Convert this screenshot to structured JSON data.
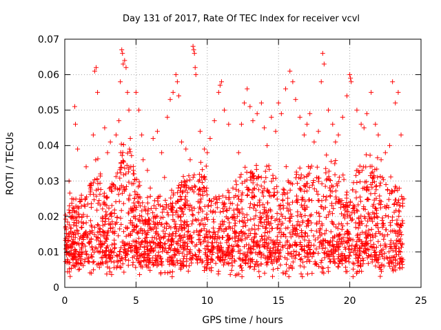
{
  "chart_data": {
    "type": "scatter",
    "title": "Day 131 of 2017, Rate Of TEC Index for receiver vcvl",
    "xlabel": "GPS time / hours",
    "ylabel": "ROTI / TECUs",
    "xlim": [
      0,
      25
    ],
    "ylim": [
      0,
      0.07
    ],
    "xticks": [
      0,
      5,
      10,
      15,
      20,
      25
    ],
    "yticks": [
      0,
      0.01,
      0.02,
      0.03,
      0.04,
      0.05,
      0.06,
      0.07
    ],
    "xtick_labels": [
      "0",
      "5",
      "10",
      "15",
      "20",
      "25"
    ],
    "ytick_labels": [
      "0",
      "0.01",
      "0.02",
      "0.03",
      "0.04",
      "0.05",
      "0.06",
      "0.07"
    ],
    "grid": true,
    "marker": "+",
    "color": "#ff0000",
    "series": [
      {
        "x": [
          0.1,
          0.3,
          0.5,
          0.7,
          0.75,
          0.9,
          1.2,
          1.5,
          1.8,
          2.0,
          2.1,
          2.2,
          2.3,
          2.5,
          2.8,
          3.0,
          3.2,
          3.4,
          3.6,
          3.8,
          3.9,
          4.0,
          4.05,
          4.1,
          4.2,
          4.3,
          4.4,
          4.5,
          4.6,
          4.8,
          5.0,
          5.2,
          5.4,
          5.5,
          5.8,
          6.0,
          6.2,
          6.5,
          6.8,
          7.0,
          7.2,
          7.4,
          7.6,
          7.8,
          7.9,
          8.0,
          8.2,
          8.5,
          8.8,
          9.0,
          9.05,
          9.1,
          9.15,
          9.2,
          9.5,
          9.8,
          10.0,
          10.2,
          10.5,
          10.8,
          10.9,
          11.0,
          11.2,
          11.5,
          11.8,
          12.0,
          12.2,
          12.4,
          12.6,
          12.8,
          13.0,
          13.2,
          13.5,
          13.8,
          14.0,
          14.2,
          14.5,
          14.8,
          15.0,
          15.2,
          15.5,
          15.8,
          16.0,
          16.2,
          16.5,
          16.8,
          17.0,
          17.2,
          17.5,
          17.8,
          18.0,
          18.1,
          18.2,
          18.5,
          18.8,
          19.0,
          19.2,
          19.5,
          19.8,
          20.0,
          20.05,
          20.1,
          20.5,
          20.8,
          21.0,
          21.2,
          21.5,
          21.8,
          22.0,
          22.2,
          22.5,
          22.8,
          23.0,
          23.2,
          23.4,
          23.6,
          23.8
        ],
        "y": [
          0.012,
          0.03,
          0.025,
          0.051,
          0.046,
          0.039,
          0.02,
          0.034,
          0.028,
          0.043,
          0.061,
          0.062,
          0.055,
          0.032,
          0.045,
          0.038,
          0.041,
          0.029,
          0.043,
          0.047,
          0.058,
          0.067,
          0.066,
          0.063,
          0.064,
          0.062,
          0.055,
          0.05,
          0.042,
          0.032,
          0.055,
          0.05,
          0.043,
          0.036,
          0.033,
          0.028,
          0.042,
          0.044,
          0.038,
          0.031,
          0.048,
          0.053,
          0.055,
          0.06,
          0.058,
          0.054,
          0.041,
          0.039,
          0.036,
          0.068,
          0.067,
          0.066,
          0.062,
          0.06,
          0.044,
          0.039,
          0.038,
          0.042,
          0.047,
          0.055,
          0.057,
          0.058,
          0.05,
          0.046,
          0.028,
          0.03,
          0.038,
          0.046,
          0.052,
          0.056,
          0.051,
          0.047,
          0.049,
          0.052,
          0.045,
          0.04,
          0.048,
          0.044,
          0.052,
          0.049,
          0.056,
          0.061,
          0.058,
          0.053,
          0.048,
          0.043,
          0.046,
          0.049,
          0.041,
          0.044,
          0.058,
          0.066,
          0.063,
          0.05,
          0.046,
          0.041,
          0.043,
          0.048,
          0.054,
          0.06,
          0.059,
          0.058,
          0.05,
          0.046,
          0.045,
          0.049,
          0.055,
          0.046,
          0.043,
          0.036,
          0.038,
          0.04,
          0.058,
          0.052,
          0.055,
          0.043,
          0.025
        ]
      }
    ]
  }
}
